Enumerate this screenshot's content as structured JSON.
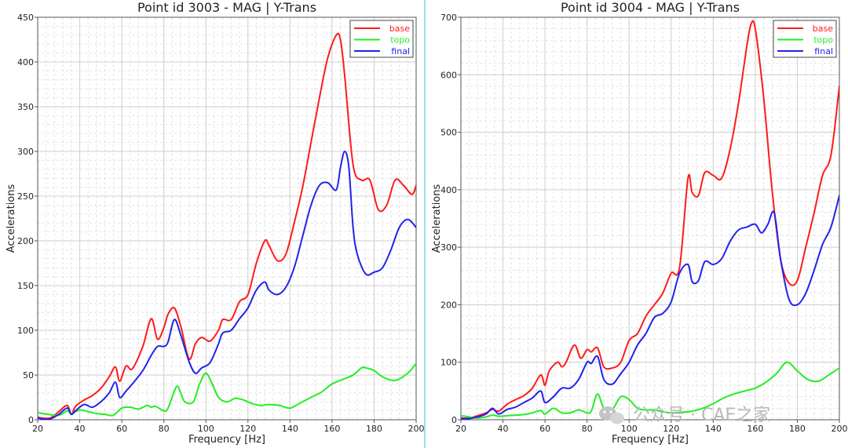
{
  "chart_data": [
    {
      "type": "line",
      "title": "Point id 3003 - MAG | Y-Trans",
      "xlabel": "Frequency [Hz]",
      "ylabel": "Accelerations",
      "xlim": [
        20,
        200
      ],
      "ylim": [
        0,
        450
      ],
      "xticks": [
        20,
        40,
        60,
        80,
        100,
        120,
        140,
        160,
        180,
        200
      ],
      "yticks": [
        0,
        50,
        100,
        150,
        200,
        250,
        300,
        350,
        400,
        450
      ],
      "grid": true,
      "legend_position": "top-right",
      "series": [
        {
          "name": "base",
          "color": "#ff1a1a",
          "x": [
            20,
            22,
            26,
            30,
            34,
            36,
            38,
            42,
            46,
            50,
            54,
            57,
            59,
            62,
            65,
            70,
            74,
            77,
            80,
            82,
            85,
            88,
            92,
            95,
            98,
            102,
            106,
            108,
            112,
            116,
            120,
            124,
            128,
            130,
            134,
            138,
            142,
            146,
            150,
            154,
            158,
            162,
            164,
            166,
            170,
            174,
            178,
            182,
            186,
            190,
            194,
            198,
            200
          ],
          "y": [
            3,
            2,
            2,
            9,
            16,
            6,
            15,
            22,
            27,
            35,
            48,
            59,
            43,
            60,
            57,
            82,
            113,
            90,
            103,
            118,
            125,
            105,
            68,
            85,
            92,
            88,
            100,
            112,
            112,
            132,
            140,
            175,
            200,
            195,
            178,
            185,
            220,
            260,
            310,
            360,
            405,
            430,
            425,
            385,
            285,
            268,
            268,
            235,
            240,
            268,
            262,
            252,
            262
          ]
        },
        {
          "name": "topo",
          "color": "#22ee22",
          "x": [
            20,
            25,
            30,
            34,
            36,
            40,
            44,
            48,
            52,
            56,
            60,
            64,
            68,
            72,
            74,
            76,
            80,
            82,
            86,
            88,
            90,
            94,
            97,
            100,
            103,
            106,
            110,
            114,
            118,
            122,
            126,
            130,
            135,
            140,
            145,
            150,
            155,
            160,
            165,
            170,
            174,
            176,
            180,
            184,
            190,
            196,
            200
          ],
          "y": [
            8,
            6,
            5,
            10,
            7,
            11,
            9,
            7,
            6,
            5,
            13,
            14,
            12,
            16,
            14,
            15,
            10,
            13,
            37,
            30,
            20,
            20,
            40,
            52,
            40,
            25,
            20,
            24,
            22,
            18,
            16,
            17,
            16,
            13,
            19,
            25,
            31,
            40,
            45,
            50,
            58,
            58,
            55,
            48,
            44,
            52,
            63
          ]
        },
        {
          "name": "final",
          "color": "#2222ee",
          "x": [
            20,
            22,
            26,
            30,
            34,
            36,
            38,
            42,
            46,
            50,
            54,
            57,
            59,
            62,
            65,
            70,
            74,
            77,
            80,
            82,
            85,
            88,
            92,
            95,
            98,
            102,
            106,
            108,
            112,
            116,
            120,
            124,
            128,
            130,
            134,
            138,
            142,
            146,
            150,
            154,
            158,
            162,
            164,
            166,
            168,
            170,
            172,
            176,
            180,
            184,
            188,
            192,
            196,
            200
          ],
          "y": [
            2,
            1,
            1,
            6,
            13,
            6,
            10,
            17,
            14,
            20,
            30,
            42,
            25,
            32,
            40,
            55,
            72,
            82,
            82,
            87,
            112,
            95,
            65,
            52,
            58,
            64,
            85,
            97,
            100,
            113,
            125,
            145,
            154,
            145,
            140,
            148,
            170,
            205,
            240,
            262,
            265,
            257,
            282,
            300,
            282,
            215,
            185,
            163,
            165,
            170,
            190,
            215,
            224,
            215
          ]
        }
      ]
    },
    {
      "type": "line",
      "title": "Point id 3004 - MAG | Y-Trans",
      "xlabel": "Frequency [Hz]",
      "ylabel": "Accelerations",
      "xlim": [
        20,
        200
      ],
      "ylim": [
        0,
        700
      ],
      "xticks": [
        20,
        40,
        60,
        80,
        100,
        120,
        140,
        160,
        180,
        200
      ],
      "yticks": [
        0,
        100,
        200,
        300,
        400,
        500,
        600,
        700
      ],
      "grid": true,
      "legend_position": "top-right",
      "series": [
        {
          "name": "base",
          "color": "#ff1a1a",
          "x": [
            20,
            24,
            28,
            32,
            35,
            38,
            42,
            46,
            50,
            54,
            58,
            60,
            62,
            66,
            68,
            70,
            74,
            77,
            80,
            82,
            85,
            88,
            92,
            96,
            100,
            104,
            108,
            112,
            116,
            120,
            124,
            128,
            130,
            133,
            136,
            140,
            144,
            148,
            152,
            156,
            158,
            160,
            164,
            168,
            172,
            176,
            180,
            184,
            188,
            192,
            196,
            200
          ],
          "y": [
            3,
            3,
            7,
            12,
            18,
            15,
            27,
            35,
            42,
            55,
            78,
            60,
            85,
            100,
            92,
            100,
            130,
            107,
            122,
            118,
            125,
            92,
            90,
            100,
            138,
            150,
            180,
            200,
            220,
            255,
            265,
            420,
            395,
            390,
            430,
            425,
            420,
            470,
            550,
            650,
            688,
            680,
            560,
            400,
            280,
            238,
            242,
            300,
            360,
            425,
            460,
            580
          ]
        },
        {
          "name": "topo",
          "color": "#22ee22",
          "x": [
            20,
            24,
            28,
            32,
            35,
            38,
            42,
            46,
            50,
            54,
            58,
            60,
            64,
            68,
            72,
            76,
            80,
            82,
            85,
            88,
            92,
            96,
            100,
            104,
            108,
            112,
            116,
            120,
            125,
            130,
            135,
            140,
            145,
            150,
            155,
            160,
            165,
            170,
            175,
            180,
            185,
            190,
            195,
            200
          ],
          "y": [
            7,
            5,
            3,
            5,
            8,
            6,
            7,
            8,
            9,
            12,
            16,
            10,
            20,
            12,
            12,
            17,
            12,
            15,
            45,
            20,
            18,
            40,
            35,
            20,
            17,
            17,
            14,
            12,
            13,
            15,
            20,
            28,
            38,
            45,
            50,
            55,
            65,
            80,
            100,
            85,
            70,
            67,
            78,
            90
          ]
        },
        {
          "name": "final",
          "color": "#2222ee",
          "x": [
            20,
            24,
            28,
            32,
            35,
            38,
            42,
            46,
            50,
            54,
            58,
            60,
            64,
            68,
            72,
            76,
            80,
            82,
            85,
            88,
            92,
            96,
            100,
            104,
            108,
            112,
            116,
            120,
            124,
            128,
            130,
            133,
            136,
            140,
            144,
            148,
            152,
            156,
            160,
            163,
            166,
            169,
            172,
            176,
            180,
            184,
            188,
            192,
            196,
            200
          ],
          "y": [
            2,
            2,
            5,
            10,
            20,
            10,
            18,
            22,
            30,
            38,
            50,
            30,
            40,
            55,
            55,
            70,
            100,
            98,
            110,
            70,
            62,
            80,
            100,
            130,
            150,
            178,
            185,
            205,
            255,
            270,
            240,
            242,
            275,
            270,
            280,
            310,
            330,
            335,
            340,
            325,
            340,
            360,
            280,
            210,
            200,
            220,
            260,
            305,
            335,
            390
          ]
        }
      ]
    }
  ],
  "watermark": "公众号 · CAE之家"
}
